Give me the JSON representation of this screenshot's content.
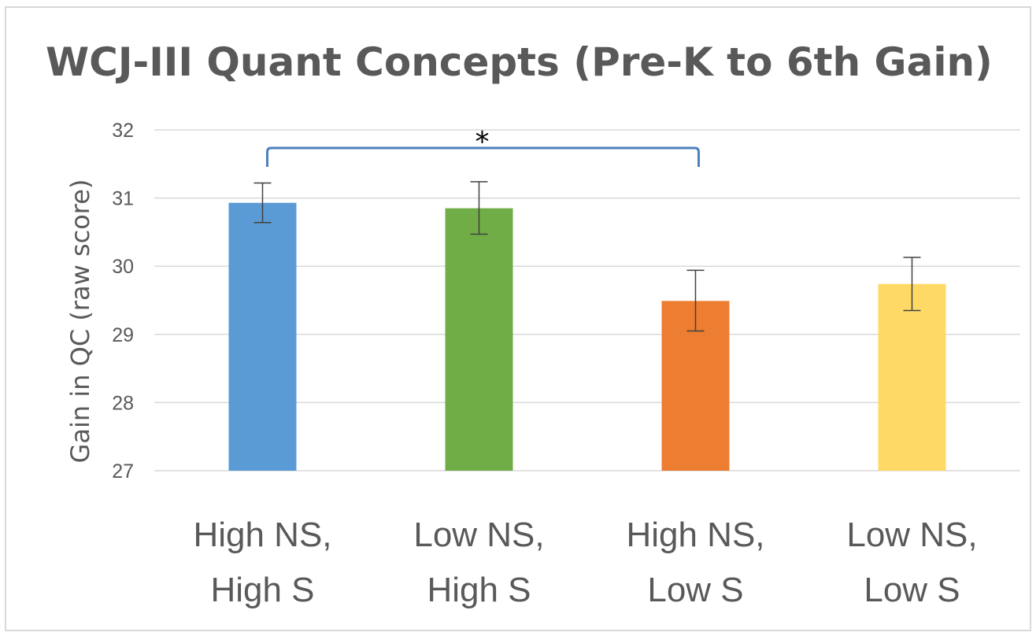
{
  "chart_data": {
    "type": "bar",
    "title": "WCJ-III Quant Concepts (Pre-K to 6th Gain)",
    "ylabel": "Gain in QC (raw score)",
    "xlabel": "",
    "ylim": [
      27,
      32
    ],
    "yticks": [
      27,
      28,
      29,
      30,
      31,
      32
    ],
    "grid": true,
    "legend": "none",
    "categories": [
      [
        "High NS,",
        "High S"
      ],
      [
        "Low NS,",
        "High S"
      ],
      [
        "High NS,",
        "Low S"
      ],
      [
        "Low NS,",
        "Low S"
      ]
    ],
    "values": [
      30.93,
      30.85,
      29.49,
      29.74
    ],
    "error_low": [
      30.64,
      30.47,
      29.05,
      29.35
    ],
    "error_high": [
      31.22,
      31.24,
      29.94,
      30.13
    ],
    "colors": [
      "#5b9bd5",
      "#70ad47",
      "#ed7d31",
      "#ffd966"
    ],
    "annotation": {
      "text": "*",
      "between": [
        0,
        2
      ],
      "bracket_color": "#4f81bd"
    }
  }
}
